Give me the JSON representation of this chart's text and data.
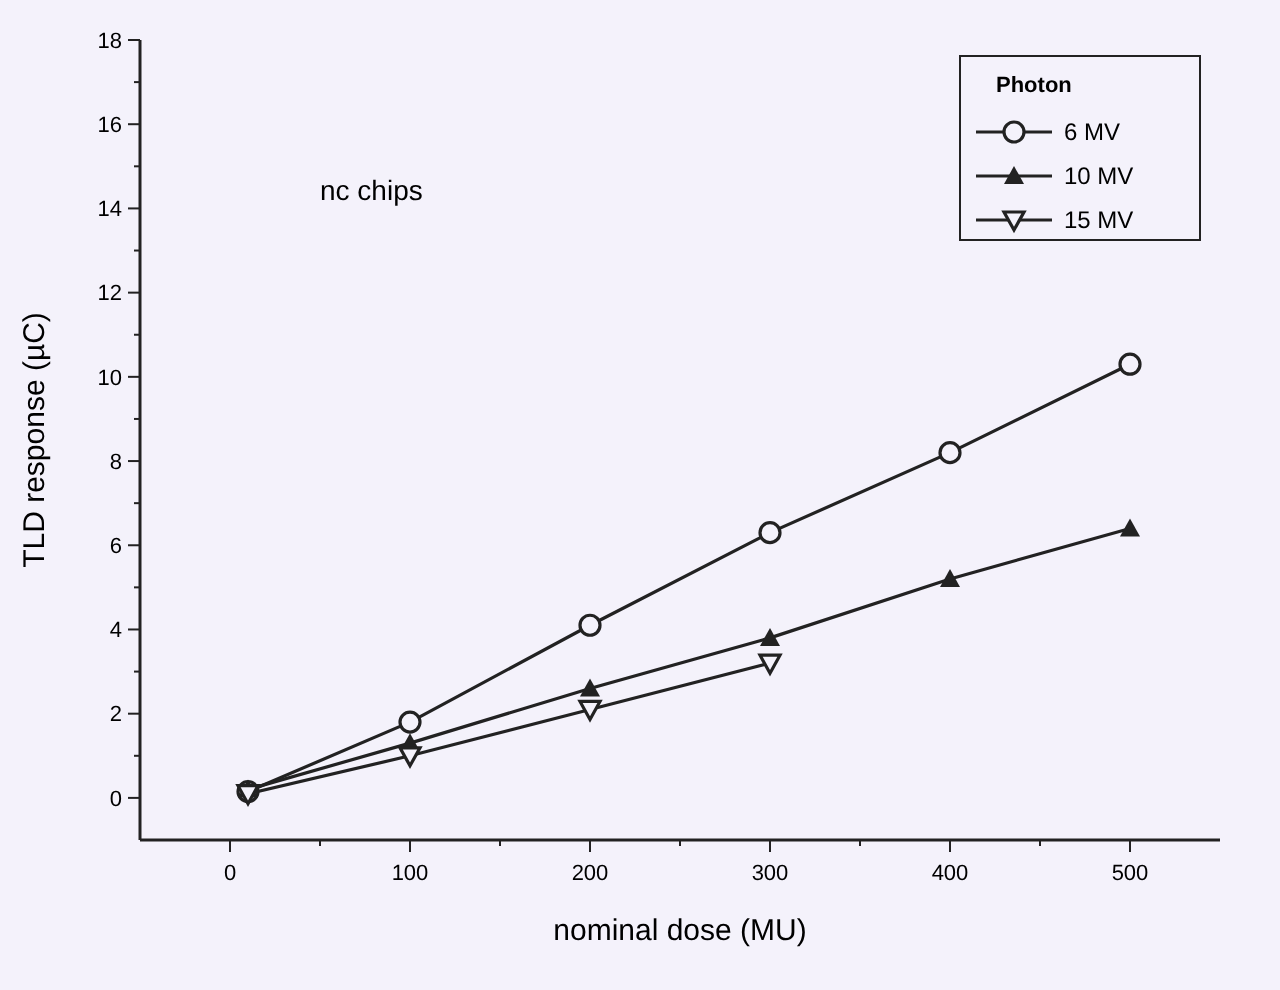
{
  "chart_data": {
    "type": "line",
    "xlabel": "nominal dose (MU)",
    "ylabel": "TLD response (µC)",
    "legend_title": "Photon",
    "legend": "top right",
    "grid": false,
    "annotations": [
      "nc chips"
    ],
    "xlim": [
      -50,
      550
    ],
    "ylim": [
      -1,
      18
    ],
    "xticks": [
      0,
      {
        "value": 50,
        "label": null
      },
      100,
      {
        "value": 150,
        "label": null
      },
      200,
      {
        "value": 250,
        "label": null
      },
      300,
      {
        "value": 350,
        "label": null
      },
      400,
      {
        "value": 450,
        "label": null
      },
      500
    ],
    "yticks": [
      0,
      {
        "value": 1,
        "label": null
      },
      2,
      {
        "value": 3,
        "label": null
      },
      4,
      {
        "value": 5,
        "label": null
      },
      6,
      {
        "value": 7,
        "label": null
      },
      8,
      {
        "value": 9,
        "label": null
      },
      10,
      {
        "value": 11,
        "label": null
      },
      12,
      {
        "value": 13,
        "label": null
      },
      14,
      {
        "value": 15,
        "label": null
      },
      16,
      {
        "value": 17,
        "label": null
      },
      18
    ],
    "series": [
      {
        "name": "6 MV",
        "color": "#222222",
        "marker": "circle",
        "x": [
          10,
          100,
          200,
          300,
          400,
          500
        ],
        "values": [
          0.15,
          1.8,
          4.1,
          6.3,
          8.2,
          10.3
        ]
      },
      {
        "name": "10 MV",
        "color": "#222222",
        "marker": "triangle",
        "x": [
          10,
          100,
          200,
          300,
          400,
          500
        ],
        "values": [
          0.2,
          1.3,
          2.6,
          3.8,
          5.2,
          6.4
        ]
      },
      {
        "name": "15 MV",
        "color": "#222222",
        "marker": "triangle-down",
        "x": [
          10,
          100,
          200,
          300
        ],
        "values": [
          0.1,
          1.0,
          2.1,
          3.2
        ]
      }
    ]
  }
}
